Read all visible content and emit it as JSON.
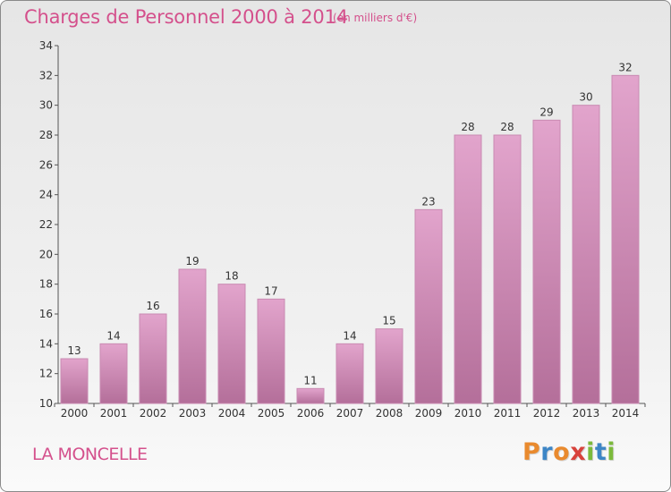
{
  "header": {
    "title": "Charges de Personnel 2000 à 2014",
    "subtitle": "(en milliers d'€)"
  },
  "footer": {
    "commune": "LA MONCELLE",
    "logo": {
      "letters": [
        "P",
        "r",
        "o",
        "x",
        "i",
        "t",
        "i"
      ],
      "colors": [
        "#e98a2e",
        "#3d86c6",
        "#e98a2e",
        "#d8423c",
        "#7cba3c",
        "#3d86c6",
        "#7cba3c"
      ]
    }
  },
  "colors": {
    "bar_top": "#e2a4cc",
    "bar_bottom": "#b46f9a",
    "bar_edge": "#c98ab2",
    "text": "#d4508c"
  },
  "chart_data": {
    "type": "bar",
    "title": "Charges de Personnel 2000 à 2014",
    "subtitle": "(en milliers d'€)",
    "categories": [
      "2000",
      "2001",
      "2002",
      "2003",
      "2004",
      "2005",
      "2006",
      "2007",
      "2008",
      "2009",
      "2010",
      "2011",
      "2012",
      "2013",
      "2014"
    ],
    "values": [
      13,
      14,
      16,
      19,
      18,
      17,
      11,
      14,
      15,
      23,
      28,
      28,
      29,
      30,
      32
    ],
    "yticks": [
      10,
      12,
      14,
      16,
      18,
      20,
      22,
      24,
      26,
      28,
      30,
      32,
      34
    ],
    "ylim": [
      10,
      34
    ],
    "xlabel": "",
    "ylabel": "",
    "grid": false,
    "data_labels": true
  }
}
